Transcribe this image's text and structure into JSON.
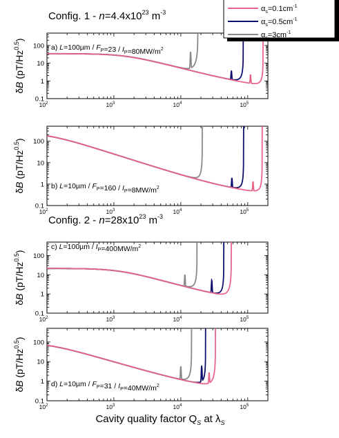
{
  "figure": {
    "config_titles": [
      {
        "prefix": "Config. 1 - ",
        "n_label": "n",
        "value": "=4.4x10",
        "exp": "23",
        "unit": " m",
        "unit_exp": "-3"
      },
      {
        "prefix": "Config. 2 - ",
        "n_label": "n",
        "value": "=28x10",
        "exp": "23",
        "unit": " m",
        "unit_exp": "-3"
      }
    ],
    "legend": {
      "position": "top-right",
      "entries": [
        {
          "symbol": "α",
          "sub": "s",
          "text": "=0.1cm",
          "sup": "-1",
          "color": "#e8658a"
        },
        {
          "symbol": "α",
          "sub": "s",
          "text": "=0.5cm",
          "sup": "-1",
          "color": "#0d0d6e"
        },
        {
          "symbol": "α",
          "sub": "s",
          "text": "=3cm",
          "sup": "-1",
          "color": "#888888"
        }
      ]
    },
    "xlabel": "Cavity quality factor Q",
    "xlabel_sub": "S",
    "xlabel_suffix": " at λ",
    "xlabel_sub2": "S",
    "ylabel_delta": "δ",
    "ylabel_var": "B",
    "ylabel_unit": " (pT/Hz",
    "ylabel_exp": "0.5",
    "ylabel_close": ")"
  },
  "chart_data": [
    {
      "type": "line",
      "panel": "a",
      "annotation": "a) L=100µm / F_P=23 / I_P=80MW/m^2",
      "xlim": [
        100,
        200000
      ],
      "ylim": [
        0.1,
        500
      ],
      "xscale": "log",
      "yscale": "log",
      "xticks": [
        "10^2",
        "10^3",
        "10^4",
        "10^5"
      ],
      "yticks": [
        "0.1",
        "1",
        "10",
        "100"
      ],
      "series": [
        {
          "color": "#888888",
          "baseline": 34,
          "knee": 1500,
          "blow_x": 18000,
          "blow_w": 0.3,
          "spike_x": 14000,
          "spike_h": 7
        },
        {
          "color": "#0d0d6e",
          "baseline": 34,
          "knee": 1500,
          "blow_x": 86000,
          "blow_w": 0.12,
          "spike_x": 57000,
          "spike_h": 2.2
        },
        {
          "color": "#e8658a",
          "baseline": 34,
          "knee": 1500,
          "blow_x": 170000,
          "blow_w": 0.1,
          "spike_x": 110000,
          "spike_h": 2.2
        }
      ]
    },
    {
      "type": "line",
      "panel": "b",
      "annotation": "b) L=10µm / F_P=160 / I_P=8MW/m^2",
      "xlim": [
        100,
        200000
      ],
      "ylim": [
        0.1,
        500
      ],
      "xscale": "log",
      "yscale": "log",
      "xticks": [
        "10^2",
        "10^3",
        "10^4",
        "10^5"
      ],
      "yticks": [
        "0.1",
        "1",
        "10",
        "100"
      ],
      "series": [
        {
          "color": "#888888",
          "baseline": 250,
          "knee": 100,
          "blow_x": 21000,
          "blow_w": 0.1,
          "spike_x": 0,
          "spike_h": 0
        },
        {
          "color": "#0d0d6e",
          "baseline": 250,
          "knee": 100,
          "blow_x": 87000,
          "blow_w": 0.08,
          "spike_x": 58000,
          "spike_h": 1.8
        },
        {
          "color": "#e8658a",
          "baseline": 250,
          "knee": 100,
          "blow_x": 165000,
          "blow_w": 0.08,
          "spike_x": 120000,
          "spike_h": 1.8
        }
      ]
    },
    {
      "type": "line",
      "panel": "c",
      "annotation": "c) L=100µm / I_P=400MW/m^2",
      "xlim": [
        100,
        200000
      ],
      "ylim": [
        0.1,
        500
      ],
      "xscale": "log",
      "yscale": "log",
      "xticks": [
        "10^2",
        "10^3",
        "10^4",
        "10^5"
      ],
      "yticks": [
        "0.1",
        "1",
        "10",
        "100"
      ],
      "series": [
        {
          "color": "#888888",
          "baseline": 21,
          "knee": 1200,
          "blow_x": 17500,
          "blow_w": 0.12,
          "spike_x": 11500,
          "spike_h": 3
        },
        {
          "color": "#0d0d6e",
          "baseline": 21,
          "knee": 1200,
          "blow_x": 44000,
          "blow_w": 0.1,
          "spike_x": 29000,
          "spike_h": 3.5
        },
        {
          "color": "#e8658a",
          "baseline": 21,
          "knee": 1200,
          "blow_x": 57000,
          "blow_w": 0.2,
          "spike_x": 0,
          "spike_h": 0
        }
      ]
    },
    {
      "type": "line",
      "panel": "d",
      "annotation": "d) L=10µm / F_P=31 / I_P=40MW/m^2",
      "xlim": [
        100,
        200000
      ],
      "ylim": [
        0.1,
        500
      ],
      "xscale": "log",
      "yscale": "log",
      "xticks": [
        "10^2",
        "10^3",
        "10^4",
        "10^5"
      ],
      "yticks": [
        "0.1",
        "1",
        "10",
        "100"
      ],
      "series": [
        {
          "color": "#888888",
          "baseline": 95,
          "knee": 100,
          "blow_x": 14500,
          "blow_w": 0.12,
          "spike_x": 10000,
          "spike_h": 3.5
        },
        {
          "color": "#0d0d6e",
          "baseline": 95,
          "knee": 100,
          "blow_x": 23500,
          "blow_w": 0.1,
          "spike_x": 20500,
          "spike_h": 5
        },
        {
          "color": "#e8658a",
          "baseline": 95,
          "knee": 100,
          "blow_x": 33000,
          "blow_w": 0.2,
          "spike_x": 26500,
          "spike_h": 2.5
        }
      ]
    }
  ]
}
